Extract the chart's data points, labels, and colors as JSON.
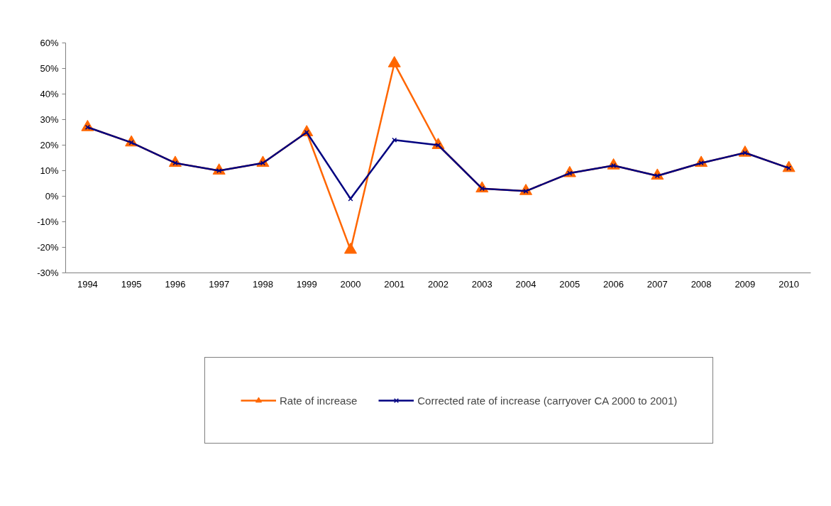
{
  "chart_data": {
    "type": "line",
    "categories": [
      "1994",
      "1995",
      "1996",
      "1997",
      "1998",
      "1999",
      "2000",
      "2001",
      "2002",
      "2003",
      "2004",
      "2005",
      "2006",
      "2007",
      "2008",
      "2009",
      "2010"
    ],
    "series": [
      {
        "name": "Rate of increase",
        "color": "#ff6600",
        "marker": "triangle",
        "values": [
          27,
          21,
          13,
          10,
          13,
          25,
          -21,
          52,
          20,
          3,
          2,
          9,
          12,
          8,
          13,
          17,
          11
        ]
      },
      {
        "name": "Corrected rate of increase (carryover CA 2000 to 2001)",
        "color": "#000080",
        "marker": "cross",
        "values": [
          27,
          21,
          13,
          10,
          13,
          25,
          -1,
          22,
          20,
          3,
          2,
          9,
          12,
          8,
          13,
          17,
          11
        ]
      }
    ],
    "ylim": [
      -30,
      60
    ],
    "yticks": [
      {
        "value": -30,
        "label": "-30%"
      },
      {
        "value": -20,
        "label": "-20%"
      },
      {
        "value": -10,
        "label": "-10%"
      },
      {
        "value": 0,
        "label": "0%"
      },
      {
        "value": 10,
        "label": "10%"
      },
      {
        "value": 20,
        "label": "20%"
      },
      {
        "value": 30,
        "label": "30%"
      },
      {
        "value": 40,
        "label": "40%"
      },
      {
        "value": 50,
        "label": "50%"
      },
      {
        "value": 60,
        "label": "60%"
      }
    ],
    "grid": false,
    "legend": "bottom",
    "line_style": "solid"
  }
}
